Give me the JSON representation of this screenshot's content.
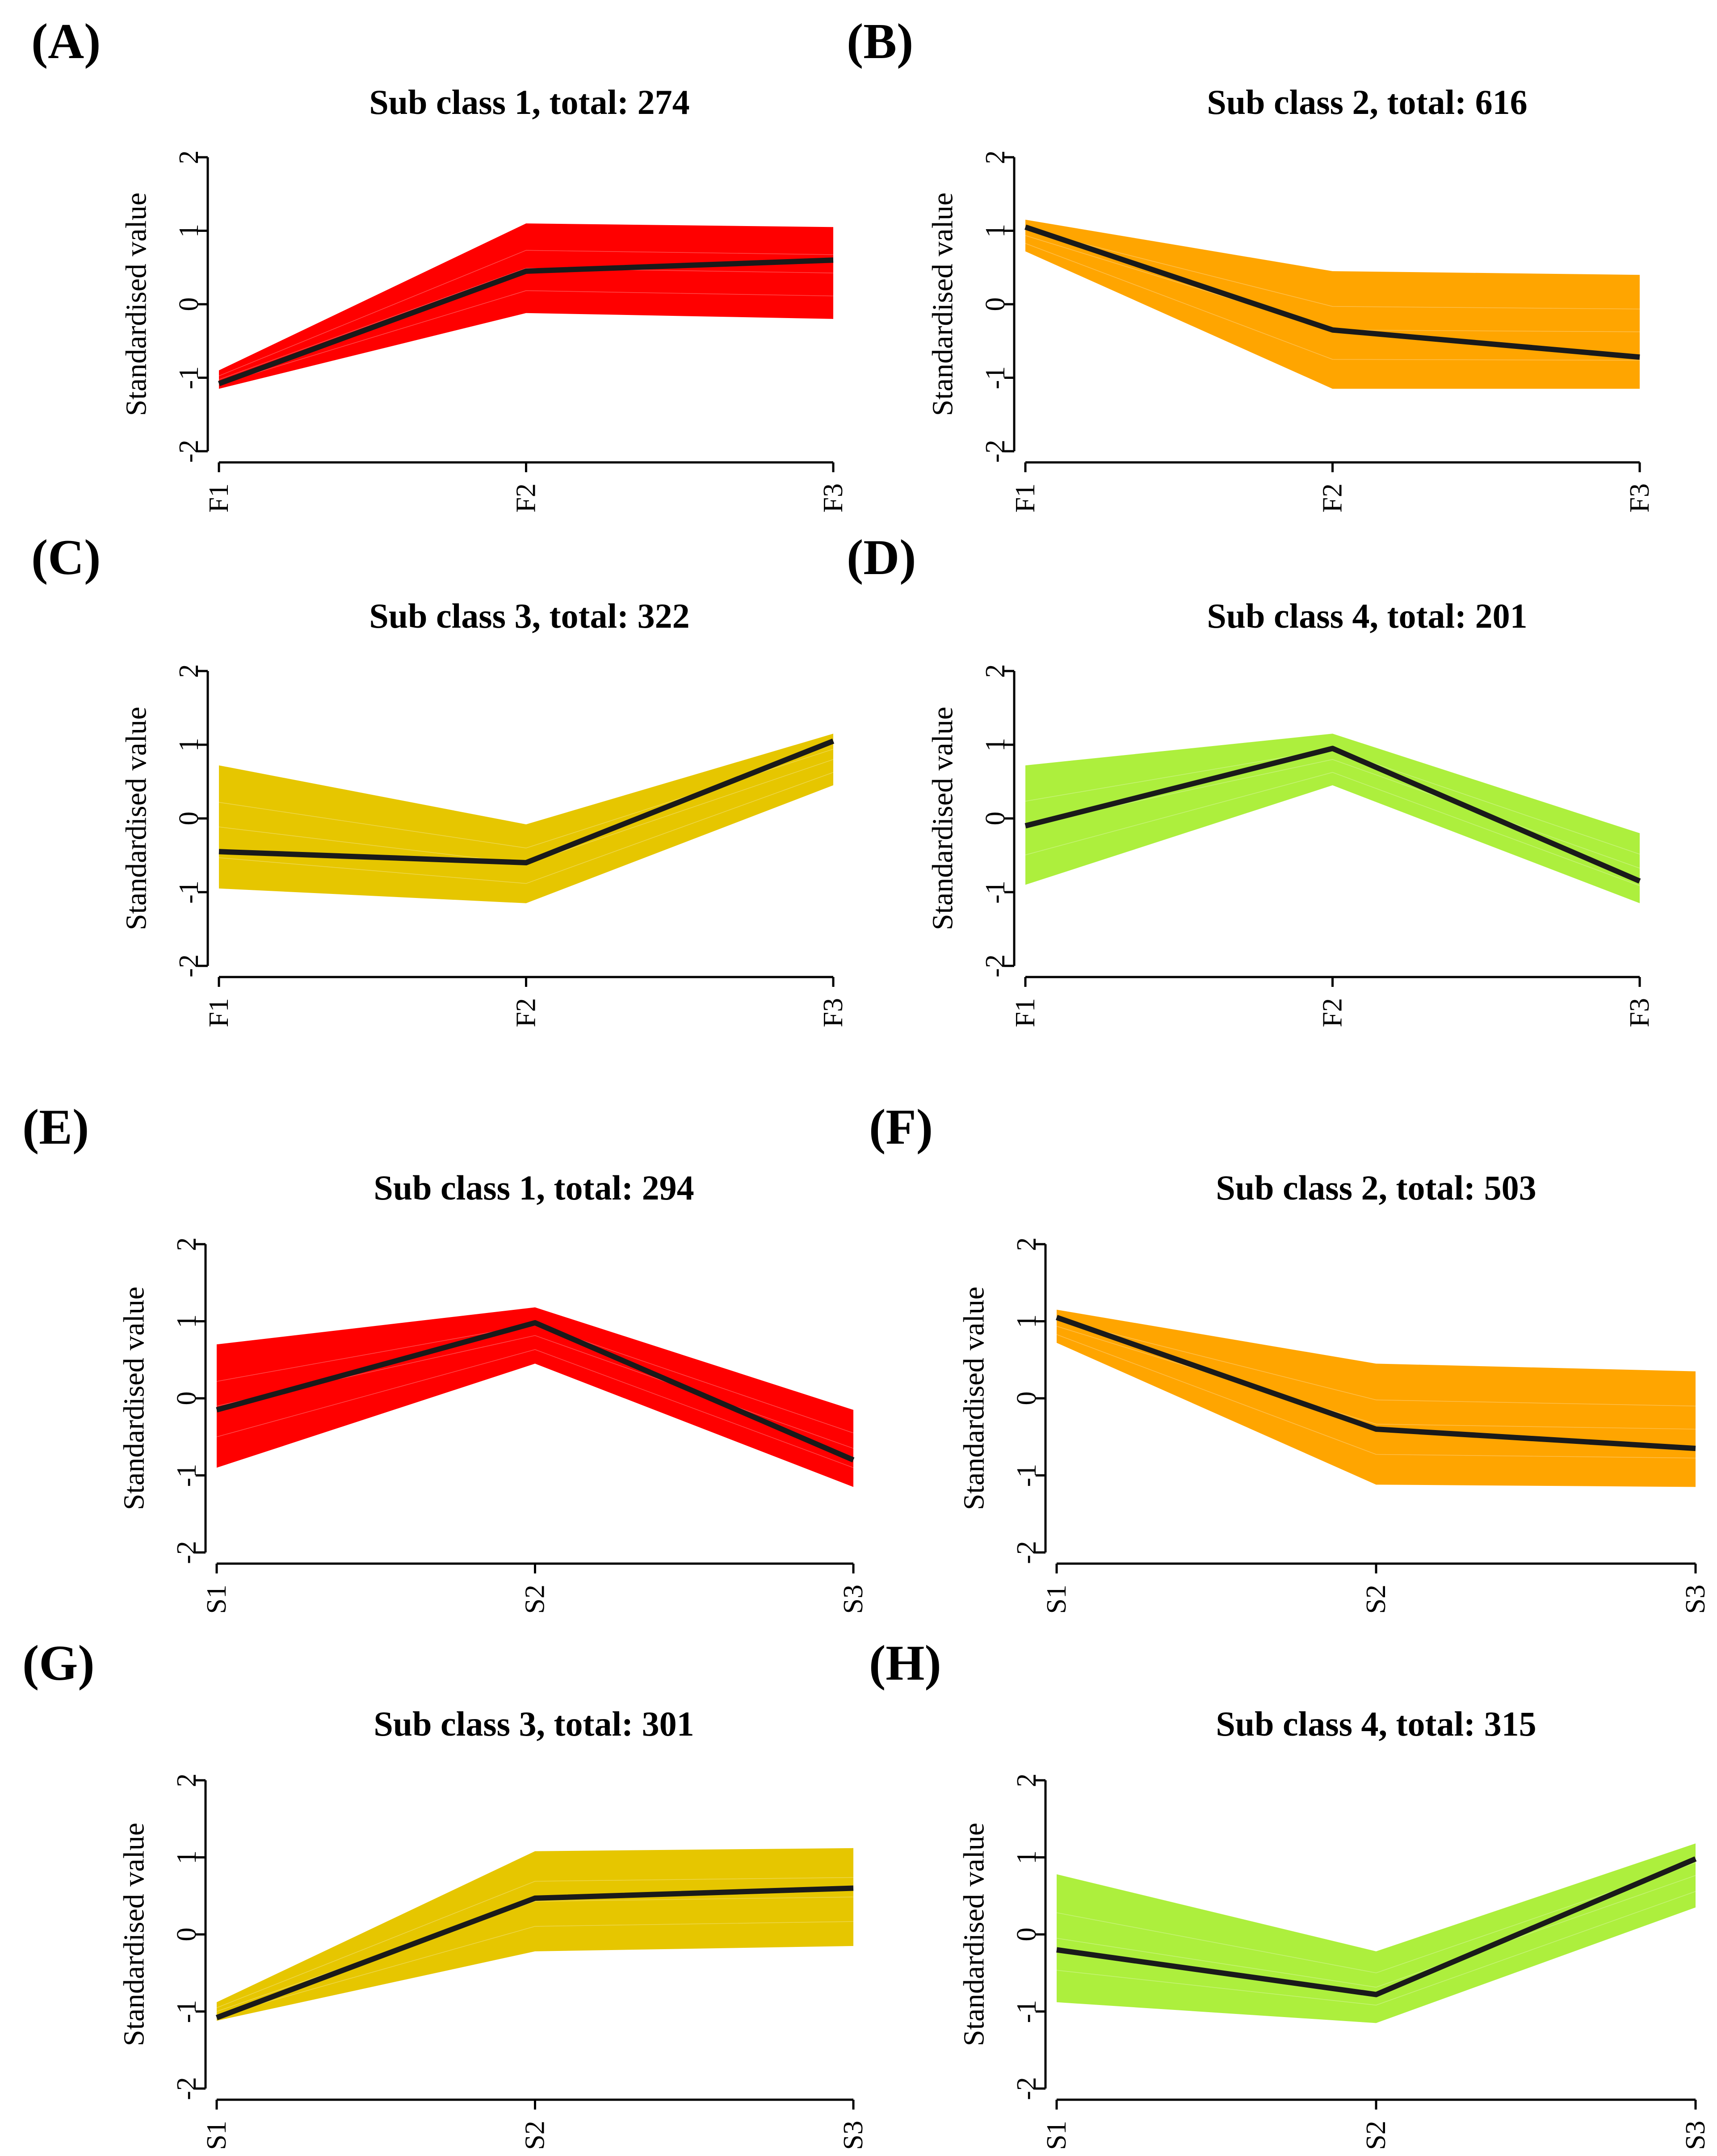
{
  "chart_data": [
    {
      "panel": "(A)",
      "type": "line",
      "title": "Sub class 1, total: 274",
      "ylabel": "Standardised value",
      "categories": [
        "F1",
        "F2",
        "F3"
      ],
      "ylim": [
        -2,
        2
      ],
      "yticks": [
        -2,
        -1,
        0,
        1,
        2
      ],
      "color": "#ff0000",
      "series": [
        {
          "name": "band upper",
          "values": [
            -0.9,
            1.1,
            1.05
          ]
        },
        {
          "name": "band lower",
          "values": [
            -1.15,
            -0.12,
            -0.2
          ]
        },
        {
          "name": "centroid",
          "values": [
            -1.08,
            0.45,
            0.6
          ]
        }
      ]
    },
    {
      "panel": "(B)",
      "type": "line",
      "title": "Sub class 2, total: 616",
      "ylabel": "Standardised value",
      "categories": [
        "F1",
        "F2",
        "F3"
      ],
      "ylim": [
        -2,
        2
      ],
      "yticks": [
        -2,
        -1,
        0,
        1,
        2
      ],
      "color": "#ffa500",
      "series": [
        {
          "name": "band upper",
          "values": [
            1.15,
            0.45,
            0.4
          ]
        },
        {
          "name": "band lower",
          "values": [
            0.72,
            -1.15,
            -1.15
          ]
        },
        {
          "name": "centroid",
          "values": [
            1.05,
            -0.35,
            -0.72
          ]
        }
      ]
    },
    {
      "panel": "(C)",
      "type": "line",
      "title": "Sub class 3, total: 322",
      "ylabel": "Standardised value",
      "categories": [
        "F1",
        "F2",
        "F3"
      ],
      "ylim": [
        -2,
        2
      ],
      "yticks": [
        -2,
        -1,
        0,
        1,
        2
      ],
      "color": "#e6c600",
      "series": [
        {
          "name": "band upper",
          "values": [
            0.72,
            -0.08,
            1.15
          ]
        },
        {
          "name": "band lower",
          "values": [
            -0.95,
            -1.15,
            0.45
          ]
        },
        {
          "name": "centroid",
          "values": [
            -0.45,
            -0.6,
            1.05
          ]
        }
      ]
    },
    {
      "panel": "(D)",
      "type": "line",
      "title": "Sub class 4, total: 201",
      "ylabel": "Standardised value",
      "categories": [
        "F1",
        "F2",
        "F3"
      ],
      "ylim": [
        -2,
        2
      ],
      "yticks": [
        -2,
        -1,
        0,
        1,
        2
      ],
      "color": "#adef3d",
      "series": [
        {
          "name": "band upper",
          "values": [
            0.72,
            1.15,
            -0.2
          ]
        },
        {
          "name": "band lower",
          "values": [
            -0.9,
            0.45,
            -1.15
          ]
        },
        {
          "name": "centroid",
          "values": [
            -0.1,
            0.95,
            -0.85
          ]
        }
      ]
    },
    {
      "panel": "(E)",
      "type": "line",
      "title": "Sub class 1, total: 294",
      "ylabel": "Standardised value",
      "categories": [
        "S1",
        "S2",
        "S3"
      ],
      "ylim": [
        -2,
        2
      ],
      "yticks": [
        -2,
        -1,
        0,
        1,
        2
      ],
      "color": "#ff0000",
      "series": [
        {
          "name": "band upper",
          "values": [
            0.7,
            1.18,
            -0.15
          ]
        },
        {
          "name": "band lower",
          "values": [
            -0.9,
            0.45,
            -1.15
          ]
        },
        {
          "name": "centroid",
          "values": [
            -0.15,
            0.98,
            -0.8
          ]
        }
      ]
    },
    {
      "panel": "(F)",
      "type": "line",
      "title": "Sub class 2, total: 503",
      "ylabel": "Standardised value",
      "categories": [
        "S1",
        "S2",
        "S3"
      ],
      "ylim": [
        -2,
        2
      ],
      "yticks": [
        -2,
        -1,
        0,
        1,
        2
      ],
      "color": "#ffa500",
      "series": [
        {
          "name": "band upper",
          "values": [
            1.15,
            0.45,
            0.35
          ]
        },
        {
          "name": "band lower",
          "values": [
            0.72,
            -1.12,
            -1.15
          ]
        },
        {
          "name": "centroid",
          "values": [
            1.05,
            -0.4,
            -0.65
          ]
        }
      ]
    },
    {
      "panel": "(G)",
      "type": "line",
      "title": "Sub class 3, total: 301",
      "ylabel": "Standardised value",
      "categories": [
        "S1",
        "S2",
        "S3"
      ],
      "ylim": [
        -2,
        2
      ],
      "yticks": [
        -2,
        -1,
        0,
        1,
        2
      ],
      "color": "#e6c600",
      "series": [
        {
          "name": "band upper",
          "values": [
            -0.88,
            1.08,
            1.12
          ]
        },
        {
          "name": "band lower",
          "values": [
            -1.12,
            -0.22,
            -0.15
          ]
        },
        {
          "name": "centroid",
          "values": [
            -1.08,
            0.47,
            0.6
          ]
        }
      ]
    },
    {
      "panel": "(H)",
      "type": "line",
      "title": "Sub class 4, total: 315",
      "ylabel": "Standardised value",
      "categories": [
        "S1",
        "S2",
        "S3"
      ],
      "ylim": [
        -2,
        2
      ],
      "yticks": [
        -2,
        -1,
        0,
        1,
        2
      ],
      "color": "#adef3d",
      "series": [
        {
          "name": "band upper",
          "values": [
            0.78,
            -0.22,
            1.18
          ]
        },
        {
          "name": "band lower",
          "values": [
            -0.88,
            -1.15,
            0.35
          ]
        },
        {
          "name": "centroid",
          "values": [
            -0.2,
            -0.78,
            0.98
          ]
        }
      ]
    }
  ]
}
